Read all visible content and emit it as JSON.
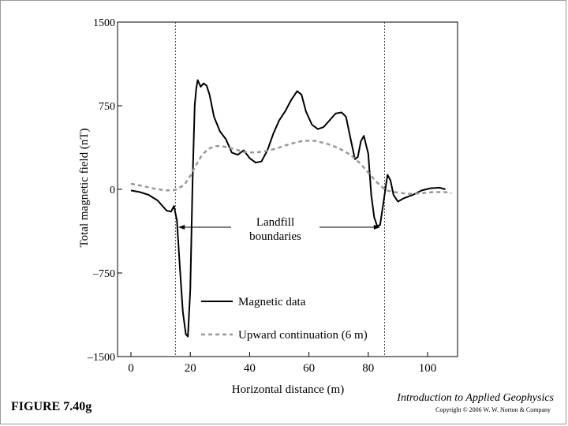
{
  "figure_label": "FIGURE 7.40g",
  "book_title": "Introduction to Applied Geophysics",
  "copyright": "Copyright © 2006 W. W. Norton & Company",
  "colors": {
    "magnetic": "#000000",
    "upward": "#999999",
    "frame": "#000000"
  },
  "chart_data": {
    "type": "line",
    "title": "",
    "xlabel": "Horizontal distance (m)",
    "ylabel": "Total magnetic field (nT)",
    "xlim": [
      0,
      110
    ],
    "ylim": [
      -1500,
      1500
    ],
    "xticks": [
      0,
      20,
      40,
      60,
      80,
      100
    ],
    "yticks": [
      1500,
      750,
      0,
      -750,
      -1500
    ],
    "ytick_labels": [
      "1500",
      "750",
      "0",
      "–750",
      "–1500"
    ],
    "boundary_lines_x": [
      15,
      85.5
    ],
    "annotation": {
      "line1": "Landfill",
      "line2": "boundaries",
      "arrow_y": -340,
      "arrow_x": [
        16,
        84
      ]
    },
    "legend": [
      {
        "name": "Magnetic data",
        "style": "solid"
      },
      {
        "name": "Upward continuation (6 m)",
        "style": "dashed"
      }
    ],
    "series": [
      {
        "name": "Magnetic data",
        "style": "solid",
        "x": [
          0,
          3,
          6,
          9,
          12,
          13.5,
          14.5,
          15.5,
          16.5,
          17.5,
          18.5,
          19.2,
          20,
          20.8,
          21.5,
          22,
          22.5,
          23.5,
          24.5,
          25.5,
          26.5,
          28,
          30,
          32,
          34,
          36,
          38,
          40,
          42,
          44,
          46,
          48,
          50,
          52,
          54,
          56,
          57.5,
          59,
          61,
          63,
          65,
          67,
          69,
          71,
          72.5,
          74,
          75.5,
          76.5,
          77.5,
          78.5,
          80,
          81,
          82,
          83,
          84,
          85,
          86.5,
          87.5,
          88.5,
          90,
          92,
          95,
          98,
          101,
          104,
          106
        ],
        "y": [
          -10,
          -25,
          -50,
          -100,
          -190,
          -200,
          -150,
          -280,
          -700,
          -1100,
          -1300,
          -1320,
          -900,
          100,
          750,
          900,
          980,
          920,
          950,
          930,
          850,
          650,
          520,
          450,
          330,
          310,
          350,
          280,
          240,
          250,
          350,
          500,
          620,
          700,
          800,
          880,
          850,
          700,
          580,
          540,
          560,
          620,
          680,
          690,
          650,
          460,
          270,
          290,
          430,
          480,
          320,
          -50,
          -250,
          -330,
          -320,
          -140,
          130,
          80,
          -50,
          -110,
          -80,
          -50,
          -10,
          10,
          15,
          0
        ]
      },
      {
        "name": "Upward continuation (6 m)",
        "style": "dashed",
        "x": [
          0,
          4,
          8,
          12,
          15,
          18,
          20,
          22,
          24,
          26,
          28,
          30,
          32,
          35,
          38,
          42,
          46,
          50,
          54,
          58,
          62,
          66,
          70,
          74,
          77,
          80,
          83,
          86,
          90,
          94,
          98,
          102,
          106,
          108
        ],
        "y": [
          50,
          30,
          5,
          -10,
          -5,
          40,
          120,
          220,
          310,
          360,
          385,
          390,
          380,
          360,
          335,
          330,
          345,
          375,
          410,
          435,
          435,
          410,
          370,
          310,
          240,
          150,
          60,
          -10,
          -30,
          -40,
          -35,
          -25,
          -25,
          -35
        ]
      }
    ]
  }
}
